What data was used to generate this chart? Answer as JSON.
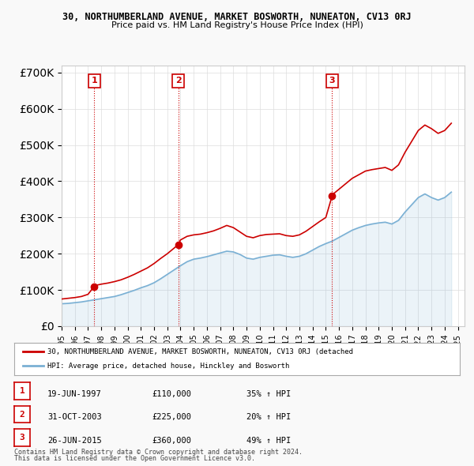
{
  "title": "30, NORTHUMBERLAND AVENUE, MARKET BOSWORTH, NUNEATON, CV13 0RJ",
  "subtitle": "Price paid vs. HM Land Registry's House Price Index (HPI)",
  "legend_line1": "30, NORTHUMBERLAND AVENUE, MARKET BOSWORTH, NUNEATON, CV13 0RJ (detached",
  "legend_line2": "HPI: Average price, detached house, Hinckley and Bosworth",
  "footer1": "Contains HM Land Registry data © Crown copyright and database right 2024.",
  "footer2": "This data is licensed under the Open Government Licence v3.0.",
  "sales": [
    {
      "num": 1,
      "date": "19-JUN-1997",
      "price": "£110,000",
      "change": "35% ↑ HPI",
      "year_x": 1997.47
    },
    {
      "num": 2,
      "date": "31-OCT-2003",
      "price": "£225,000",
      "change": "20% ↑ HPI",
      "year_x": 2003.83
    },
    {
      "num": 3,
      "date": "26-JUN-2015",
      "price": "£360,000",
      "change": "49% ↑ HPI",
      "year_x": 2015.48
    }
  ],
  "sale_prices": [
    110000,
    225000,
    360000
  ],
  "background_color": "#f9f9f9",
  "plot_bg_color": "#ffffff",
  "red_color": "#cc0000",
  "blue_color": "#7ab0d4",
  "grid_color": "#dddddd",
  "ylim": [
    0,
    720000
  ],
  "xlim_start": 1995.0,
  "xlim_end": 2025.5,
  "hpi_data": {
    "years": [
      1995.0,
      1995.5,
      1996.0,
      1996.5,
      1997.0,
      1997.5,
      1998.0,
      1998.5,
      1999.0,
      1999.5,
      2000.0,
      2000.5,
      2001.0,
      2001.5,
      2002.0,
      2002.5,
      2003.0,
      2003.5,
      2004.0,
      2004.5,
      2005.0,
      2005.5,
      2006.0,
      2006.5,
      2007.0,
      2007.5,
      2008.0,
      2008.5,
      2009.0,
      2009.5,
      2010.0,
      2010.5,
      2011.0,
      2011.5,
      2012.0,
      2012.5,
      2013.0,
      2013.5,
      2014.0,
      2014.5,
      2015.0,
      2015.5,
      2016.0,
      2016.5,
      2017.0,
      2017.5,
      2018.0,
      2018.5,
      2019.0,
      2019.5,
      2020.0,
      2020.5,
      2021.0,
      2021.5,
      2022.0,
      2022.5,
      2023.0,
      2023.5,
      2024.0,
      2024.5
    ],
    "values": [
      62000,
      63000,
      65000,
      67000,
      70000,
      73000,
      76000,
      79000,
      82000,
      87000,
      93000,
      99000,
      106000,
      112000,
      120000,
      131000,
      143000,
      155000,
      167000,
      178000,
      185000,
      188000,
      192000,
      197000,
      202000,
      207000,
      205000,
      198000,
      188000,
      185000,
      190000,
      193000,
      196000,
      197000,
      193000,
      190000,
      193000,
      200000,
      210000,
      220000,
      228000,
      235000,
      245000,
      255000,
      265000,
      272000,
      278000,
      282000,
      285000,
      287000,
      282000,
      292000,
      315000,
      335000,
      355000,
      365000,
      355000,
      348000,
      355000,
      370000
    ]
  },
  "property_data": {
    "years": [
      1995.0,
      1995.5,
      1996.0,
      1996.5,
      1997.0,
      1997.47,
      1997.5,
      1998.0,
      1998.5,
      1999.0,
      1999.5,
      2000.0,
      2000.5,
      2001.0,
      2001.5,
      2002.0,
      2002.5,
      2003.0,
      2003.5,
      2003.83,
      2004.0,
      2004.5,
      2005.0,
      2005.5,
      2006.0,
      2006.5,
      2007.0,
      2007.5,
      2008.0,
      2008.5,
      2009.0,
      2009.5,
      2010.0,
      2010.5,
      2011.0,
      2011.5,
      2012.0,
      2012.5,
      2013.0,
      2013.5,
      2014.0,
      2014.5,
      2015.0,
      2015.48,
      2015.5,
      2016.0,
      2016.5,
      2017.0,
      2017.5,
      2018.0,
      2018.5,
      2019.0,
      2019.5,
      2020.0,
      2020.5,
      2021.0,
      2021.5,
      2022.0,
      2022.5,
      2023.0,
      2023.5,
      2024.0,
      2024.5
    ],
    "values": [
      75000,
      77000,
      79000,
      82000,
      88000,
      110000,
      112000,
      116000,
      119000,
      123000,
      128000,
      135000,
      143000,
      152000,
      161000,
      173000,
      187000,
      200000,
      215000,
      225000,
      238000,
      248000,
      252000,
      254000,
      258000,
      263000,
      270000,
      278000,
      272000,
      260000,
      248000,
      244000,
      250000,
      253000,
      254000,
      255000,
      250000,
      248000,
      252000,
      262000,
      275000,
      288000,
      300000,
      360000,
      363000,
      378000,
      393000,
      408000,
      418000,
      428000,
      432000,
      435000,
      438000,
      430000,
      445000,
      480000,
      510000,
      540000,
      555000,
      545000,
      532000,
      540000,
      560000
    ]
  }
}
